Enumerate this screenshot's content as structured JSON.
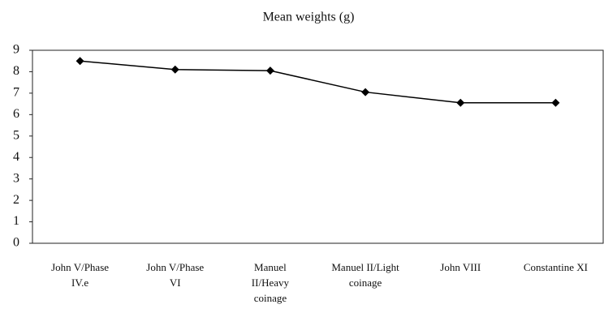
{
  "chart_data": {
    "type": "line",
    "title": "Mean weights (g)",
    "categories": [
      "John V/Phase IV.e",
      "John V/Phase VI",
      "Manuel II/Heavy coinage",
      "Manuel II/Light coinage",
      "John VIII",
      "Constantine XI"
    ],
    "series": [
      {
        "name": "Mean weights (g)",
        "color": "#000000",
        "values": [
          8.5,
          8.1,
          8.05,
          7.05,
          6.55,
          6.55
        ]
      }
    ],
    "ylim": [
      0,
      9
    ],
    "yticks": [
      0,
      1,
      2,
      3,
      4,
      5,
      6,
      7,
      8,
      9
    ],
    "grid": false
  }
}
